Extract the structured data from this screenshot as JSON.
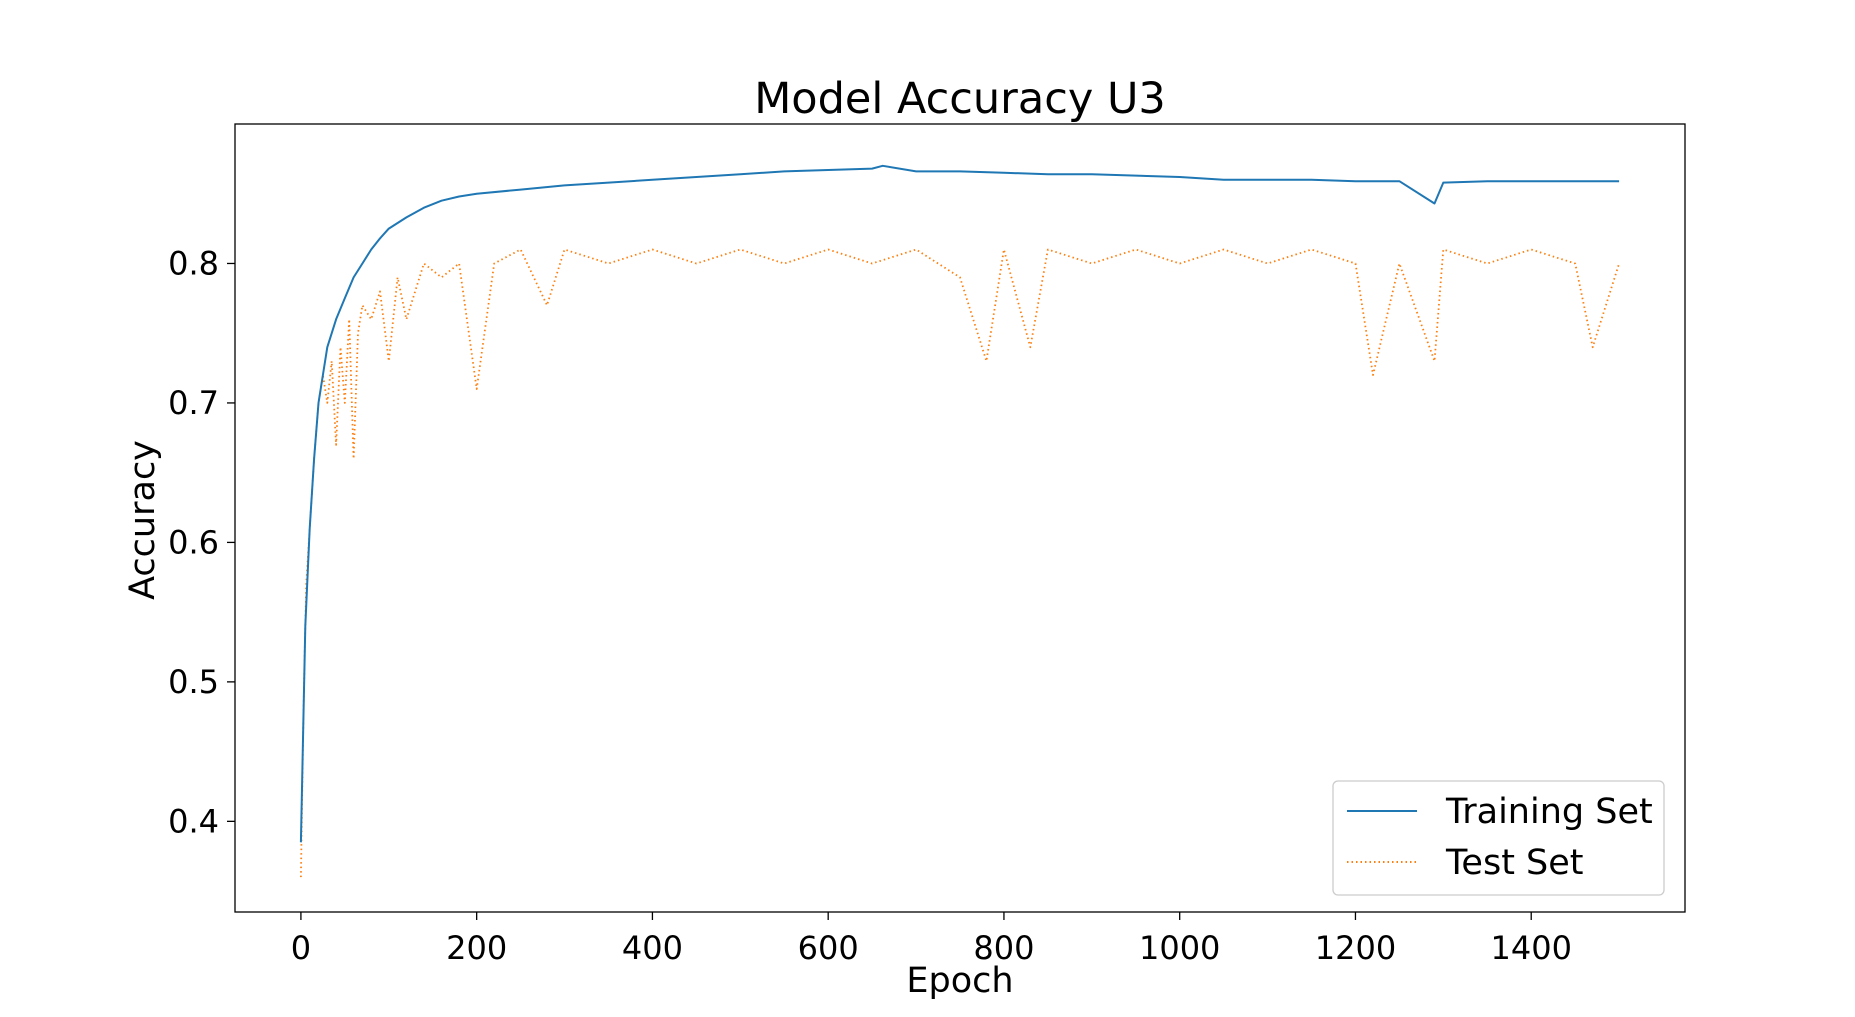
{
  "chart_data": {
    "type": "line",
    "title": "Model Accuracy U3",
    "xlabel": "Epoch",
    "ylabel": "Accuracy",
    "xlim": [
      -75,
      1575
    ],
    "ylim": [
      0.335,
      0.9
    ],
    "xticks": [
      0,
      200,
      400,
      600,
      800,
      1000,
      1200,
      1400
    ],
    "xtick_labels": [
      "0",
      "200",
      "400",
      "600",
      "800",
      "1000",
      "1200",
      "1400"
    ],
    "yticks": [
      0.4,
      0.5,
      0.6,
      0.7,
      0.8
    ],
    "ytick_labels": [
      "0.4",
      "0.5",
      "0.6",
      "0.7",
      "0.8"
    ],
    "grid": false,
    "legend_position": "bottom-right",
    "colors": {
      "train": "#1f77b4",
      "test": "#ff7f0e"
    },
    "series": [
      {
        "name": "Training Set",
        "style": "solid",
        "x": [
          0,
          5,
          10,
          15,
          20,
          25,
          30,
          40,
          50,
          60,
          70,
          80,
          90,
          100,
          120,
          140,
          160,
          180,
          200,
          250,
          300,
          350,
          400,
          450,
          500,
          550,
          600,
          650,
          662,
          700,
          750,
          800,
          850,
          900,
          950,
          1000,
          1050,
          1100,
          1150,
          1200,
          1250,
          1290,
          1300,
          1350,
          1400,
          1450,
          1500
        ],
        "y": [
          0.385,
          0.54,
          0.61,
          0.66,
          0.7,
          0.72,
          0.74,
          0.76,
          0.775,
          0.79,
          0.8,
          0.81,
          0.818,
          0.825,
          0.833,
          0.84,
          0.845,
          0.848,
          0.85,
          0.853,
          0.856,
          0.858,
          0.86,
          0.862,
          0.864,
          0.866,
          0.867,
          0.868,
          0.87,
          0.866,
          0.866,
          0.865,
          0.864,
          0.864,
          0.863,
          0.862,
          0.86,
          0.86,
          0.86,
          0.859,
          0.859,
          0.843,
          0.858,
          0.859,
          0.859,
          0.859,
          0.859
        ]
      },
      {
        "name": "Test Set",
        "style": "dotted",
        "x": [
          0,
          3,
          6,
          10,
          15,
          20,
          25,
          30,
          35,
          40,
          45,
          50,
          55,
          60,
          65,
          70,
          80,
          90,
          100,
          110,
          120,
          140,
          160,
          180,
          200,
          220,
          250,
          280,
          300,
          350,
          400,
          450,
          500,
          550,
          600,
          650,
          700,
          750,
          780,
          800,
          830,
          850,
          900,
          950,
          1000,
          1050,
          1100,
          1150,
          1200,
          1220,
          1250,
          1290,
          1300,
          1350,
          1400,
          1450,
          1470,
          1500
        ],
        "y": [
          0.36,
          0.48,
          0.57,
          0.61,
          0.66,
          0.7,
          0.72,
          0.7,
          0.73,
          0.67,
          0.74,
          0.7,
          0.76,
          0.66,
          0.75,
          0.77,
          0.76,
          0.78,
          0.73,
          0.79,
          0.76,
          0.8,
          0.79,
          0.8,
          0.71,
          0.8,
          0.81,
          0.77,
          0.81,
          0.8,
          0.81,
          0.8,
          0.81,
          0.8,
          0.81,
          0.8,
          0.81,
          0.79,
          0.73,
          0.81,
          0.74,
          0.81,
          0.8,
          0.81,
          0.8,
          0.81,
          0.8,
          0.81,
          0.8,
          0.72,
          0.8,
          0.73,
          0.81,
          0.8,
          0.81,
          0.8,
          0.74,
          0.8
        ]
      }
    ]
  }
}
